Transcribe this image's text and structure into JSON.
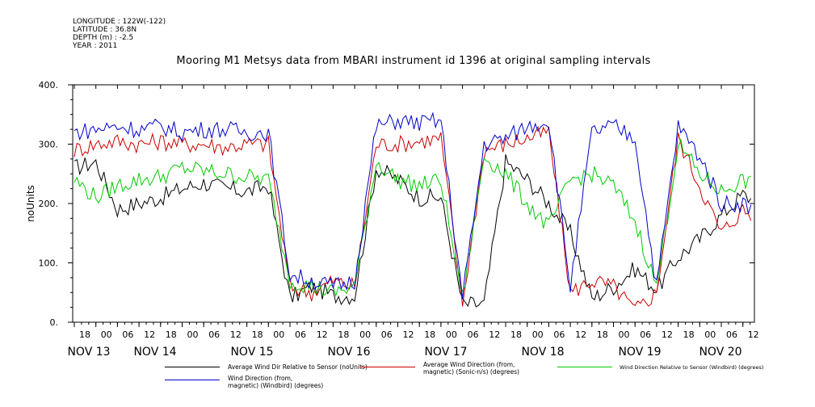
{
  "header": {
    "longitude": "LONGITUDE : 122W(-122)",
    "latitude": "LATITUDE : 36.8N",
    "depth": "DEPTH (m) : -2.5",
    "year": "YEAR : 2011"
  },
  "chart_data": {
    "type": "line",
    "title": "Mooring M1 Metsys data from MBARI instrument id 1396 at original sampling intervals",
    "ylabel": "noUnits",
    "xlabel": "",
    "ylim": [
      0,
      400
    ],
    "y_ticks": [
      "0.",
      "100.",
      "200.",
      "300.",
      "400."
    ],
    "x_hour_ticks": [
      "18",
      "00",
      "06",
      "12",
      "18",
      "00",
      "06",
      "12",
      "18",
      "00",
      "06",
      "12",
      "18",
      "00",
      "06",
      "12",
      "18",
      "00",
      "06",
      "12",
      "18",
      "00",
      "06",
      "12",
      "18",
      "00",
      "06",
      "12",
      "18",
      "00",
      "06",
      "12"
    ],
    "x_day_labels": [
      "NOV 13",
      "NOV 14",
      "NOV 15",
      "NOV 16",
      "NOV 17",
      "NOV 18",
      "NOV 19",
      "NOV 20"
    ],
    "grid": false,
    "legend_position": "bottom",
    "x": [
      0,
      6,
      12,
      18,
      24,
      30,
      36,
      42,
      48,
      54,
      60,
      66,
      72,
      78,
      84,
      90,
      96,
      102,
      108,
      114,
      120,
      126,
      132,
      138,
      144,
      150,
      156,
      162,
      168,
      174,
      180,
      186,
      192
    ],
    "series": [
      {
        "name": "Average Wind Dir Relative to Sensor (noUnits)",
        "color": "#000000",
        "values": [
          260,
          270,
          190,
          200,
          210,
          225,
          235,
          225,
          220,
          230,
          40,
          60,
          45,
          45,
          260,
          240,
          210,
          210,
          30,
          30,
          270,
          240,
          200,
          150,
          40,
          60,
          90,
          55,
          110,
          140,
          180,
          215,
          195
        ]
      },
      {
        "name": "Average Wind Direction (from, magnetic) (Sonic-n/s) (degrees)",
        "color": "#cc0000",
        "values": [
          290,
          300,
          305,
          300,
          305,
          300,
          300,
          295,
          300,
          300,
          60,
          50,
          70,
          60,
          300,
          300,
          305,
          310,
          30,
          290,
          300,
          310,
          320,
          50,
          70,
          60,
          20,
          50,
          310,
          230,
          150,
          190,
          160
        ]
      },
      {
        "name": "Wind Direction Relative to Sensor (Windbird) (degrees)",
        "color": "#00cc00",
        "values": [
          240,
          210,
          230,
          240,
          245,
          260,
          255,
          250,
          245,
          240,
          70,
          60,
          50,
          60,
          270,
          240,
          230,
          240,
          40,
          280,
          250,
          200,
          160,
          240,
          250,
          230,
          170,
          60,
          300,
          250,
          220,
          240,
          220
        ]
      },
      {
        "name": "Wind Direction (from, magnetic) (Windbird) (degrees)",
        "color": "#0000cc",
        "values": [
          320,
          325,
          330,
          325,
          330,
          320,
          325,
          325,
          320,
          320,
          80,
          70,
          60,
          70,
          330,
          340,
          335,
          340,
          40,
          300,
          310,
          330,
          340,
          60,
          320,
          330,
          310,
          60,
          330,
          280,
          200,
          200,
          180
        ]
      }
    ]
  },
  "legend": [
    {
      "label": "Average Wind Dir Relative to Sensor (noUnits)",
      "color": "#000000"
    },
    {
      "label": "Average Wind Direction (from,\nmagnetic) (Sonic-n/s) (degrees)",
      "color": "#cc0000"
    },
    {
      "label": "Wind Direction Relative to Sensor (Windbird) (degrees)",
      "color": "#00cc00"
    },
    {
      "label": "Wind Direction (from,\nmagnetic) (Windbird) (degrees)",
      "color": "#0000cc"
    }
  ]
}
